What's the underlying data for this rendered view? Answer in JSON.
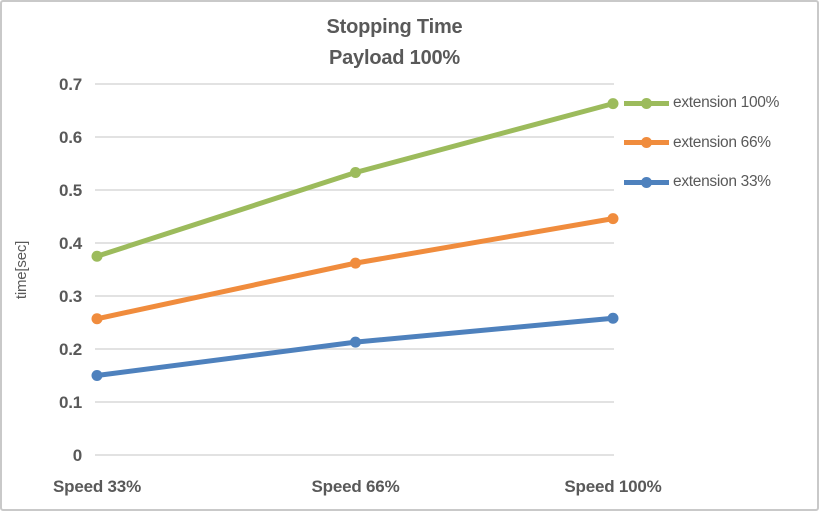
{
  "chart_data": {
    "type": "line",
    "title": "Stopping Time",
    "subtitle": "Payload 100%",
    "ylabel": "time[sec]",
    "xlabel": "",
    "categories": [
      "Speed 33%",
      "Speed 66%",
      "Speed 100%"
    ],
    "series": [
      {
        "name": "extension 100%",
        "color": "#9CBB5C",
        "values": [
          0.375,
          0.533,
          0.663
        ]
      },
      {
        "name": "extension 66%",
        "color": "#F08C3D",
        "values": [
          0.257,
          0.362,
          0.446
        ]
      },
      {
        "name": "extension 33%",
        "color": "#4E81BD",
        "values": [
          0.15,
          0.213,
          0.258
        ]
      }
    ],
    "ylim": [
      0,
      0.7
    ],
    "yticks": [
      {
        "value": 0.7,
        "label": "0.7"
      },
      {
        "value": 0.6,
        "label": "0.6"
      },
      {
        "value": 0.5,
        "label": "0.5"
      },
      {
        "value": 0.4,
        "label": "0.4"
      },
      {
        "value": 0.3,
        "label": "0.3"
      },
      {
        "value": 0.2,
        "label": "0.2"
      },
      {
        "value": 0.1,
        "label": "0.1"
      },
      {
        "value": 0,
        "label": "0"
      }
    ],
    "grid": "horizontal",
    "legend_position": "right",
    "marker": "circle"
  },
  "colors": {
    "background": "#FFFFFF",
    "border": "#C9C9C9",
    "gridline": "#D9D9D9",
    "axis_text": "#595959",
    "title_text": "#595959"
  }
}
